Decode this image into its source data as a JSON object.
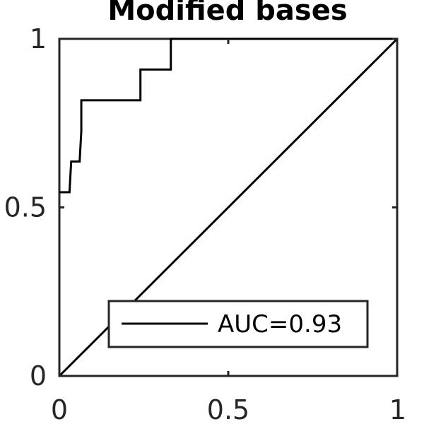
{
  "chart_data": {
    "type": "line",
    "title": "Modified bases",
    "xlabel": "",
    "ylabel": "",
    "xlim": [
      0,
      1
    ],
    "ylim": [
      0,
      1
    ],
    "xticks": [
      0,
      0.5,
      1
    ],
    "yticks": [
      0,
      0.5,
      1
    ],
    "xtick_labels": [
      "0",
      "0.5",
      "1"
    ],
    "ytick_labels": [
      "0",
      "0.5",
      "1"
    ],
    "grid": false,
    "legend_position": "bottom-right",
    "series": [
      {
        "name": "AUC=0.93",
        "color": "#000000",
        "x": [
          0,
          0.03,
          0.035,
          0.06,
          0.065,
          0.065,
          0.07,
          0.24,
          0.24,
          0.33,
          0.33,
          1
        ],
        "y": [
          0.545,
          0.545,
          0.636,
          0.636,
          0.727,
          0.818,
          0.818,
          0.818,
          0.909,
          0.909,
          1,
          1
        ]
      },
      {
        "name": "",
        "color": "#000000",
        "x": [
          0,
          1
        ],
        "y": [
          0,
          1
        ]
      }
    ]
  }
}
